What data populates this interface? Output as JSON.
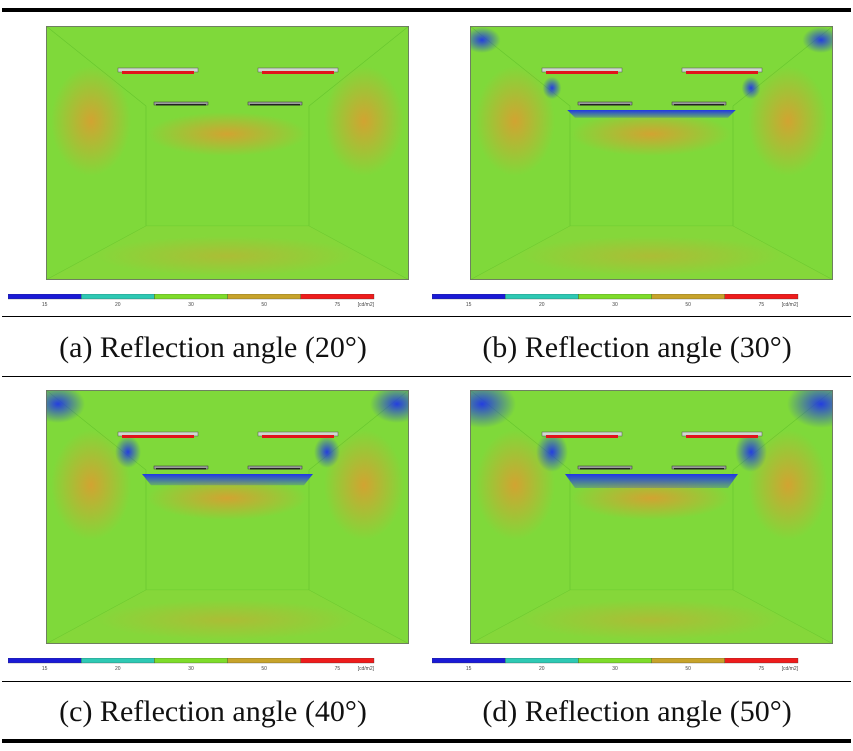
{
  "figure": {
    "panels": [
      {
        "id": "a",
        "caption": "(a) Reflection angle (20°)",
        "angle_deg": 20,
        "ceiling_band_strength": 0.0,
        "corner_blue_strength": 0.0
      },
      {
        "id": "b",
        "caption": "(b) Reflection angle (30°)",
        "angle_deg": 30,
        "ceiling_band_strength": 0.55,
        "corner_blue_strength": 0.45
      },
      {
        "id": "c",
        "caption": "(c) Reflection angle (40°)",
        "angle_deg": 40,
        "ceiling_band_strength": 0.8,
        "corner_blue_strength": 0.75
      },
      {
        "id": "d",
        "caption": "(d) Reflection angle (50°)",
        "angle_deg": 50,
        "ceiling_band_strength": 1.0,
        "corner_blue_strength": 1.0
      }
    ],
    "colorbar": {
      "ticks": [
        "15",
        "20",
        "30",
        "50",
        "75"
      ],
      "unit": "[cd/m2]",
      "colors": [
        "#1a1ad6",
        "#2ec9b4",
        "#7edc2a",
        "#c7a32a",
        "#ee1c1c"
      ]
    },
    "colors": {
      "base_green": "#7fd93a",
      "warm_orange": "#e09a30",
      "cool_blue": "#1f36e8",
      "fixture_red": "#e0141c"
    }
  }
}
